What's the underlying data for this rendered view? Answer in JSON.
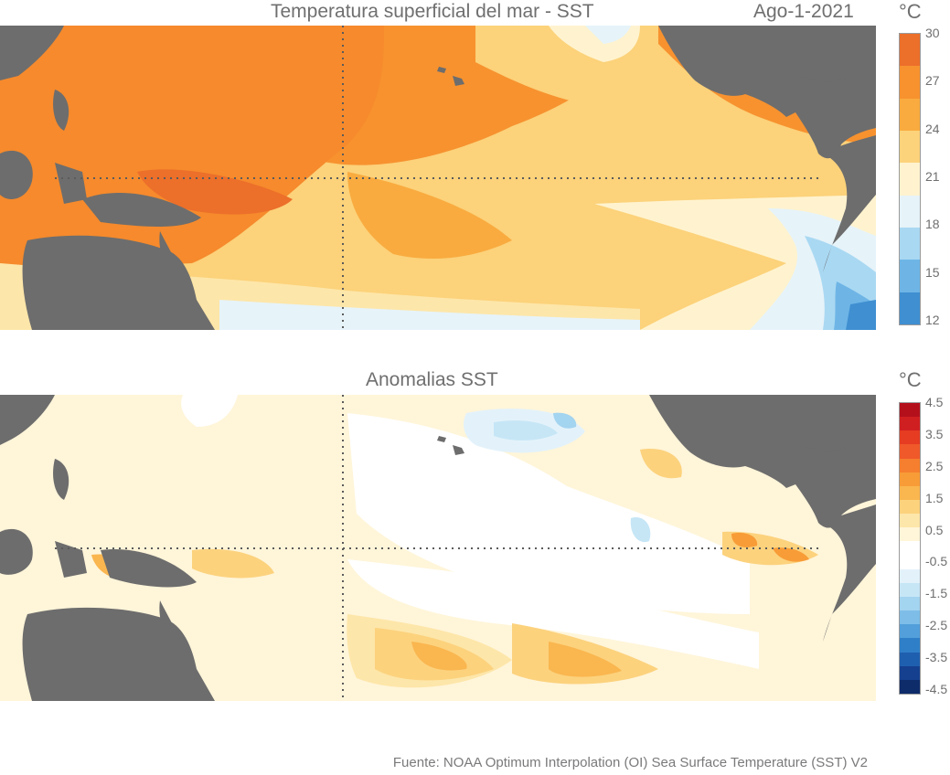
{
  "panel_top": {
    "title": "Temperatura superficial del mar - SST",
    "date": "Ago-1-2021",
    "unit": "°C",
    "colorbar": {
      "ticks": [
        "30",
        "27",
        "24",
        "21",
        "18",
        "15",
        "12"
      ],
      "colors": [
        "#ec6f2a",
        "#f7922f",
        "#f9ab3f",
        "#fcd27a",
        "#fff3cf",
        "#e6f3f9",
        "#a9d8f2",
        "#6eb5e6",
        "#3f8fd1"
      ]
    }
  },
  "panel_bottom": {
    "title": "Anomalias SST",
    "unit": "°C",
    "colorbar": {
      "ticks": [
        "4.5",
        "3.5",
        "2.5",
        "1.5",
        "0.5",
        "-0.5",
        "-1.5",
        "-2.5",
        "-3.5",
        "-4.5"
      ],
      "colors": [
        "#b3101c",
        "#d01f21",
        "#e53c22",
        "#f0592a",
        "#f57f2e",
        "#f89c37",
        "#fab64f",
        "#fcd27d",
        "#fde6a9",
        "#fff5d9",
        "#ffffff",
        "#ffffff",
        "#e3f2fa",
        "#c6e6f6",
        "#a3d4f0",
        "#7dbde8",
        "#529fdb",
        "#2f7fc8",
        "#1f5fb0",
        "#15408f",
        "#0e2b6a"
      ]
    }
  },
  "source": "Fuente: NOAA Optimum Interpolation (OI) Sea Surface Temperature (SST) V2"
}
